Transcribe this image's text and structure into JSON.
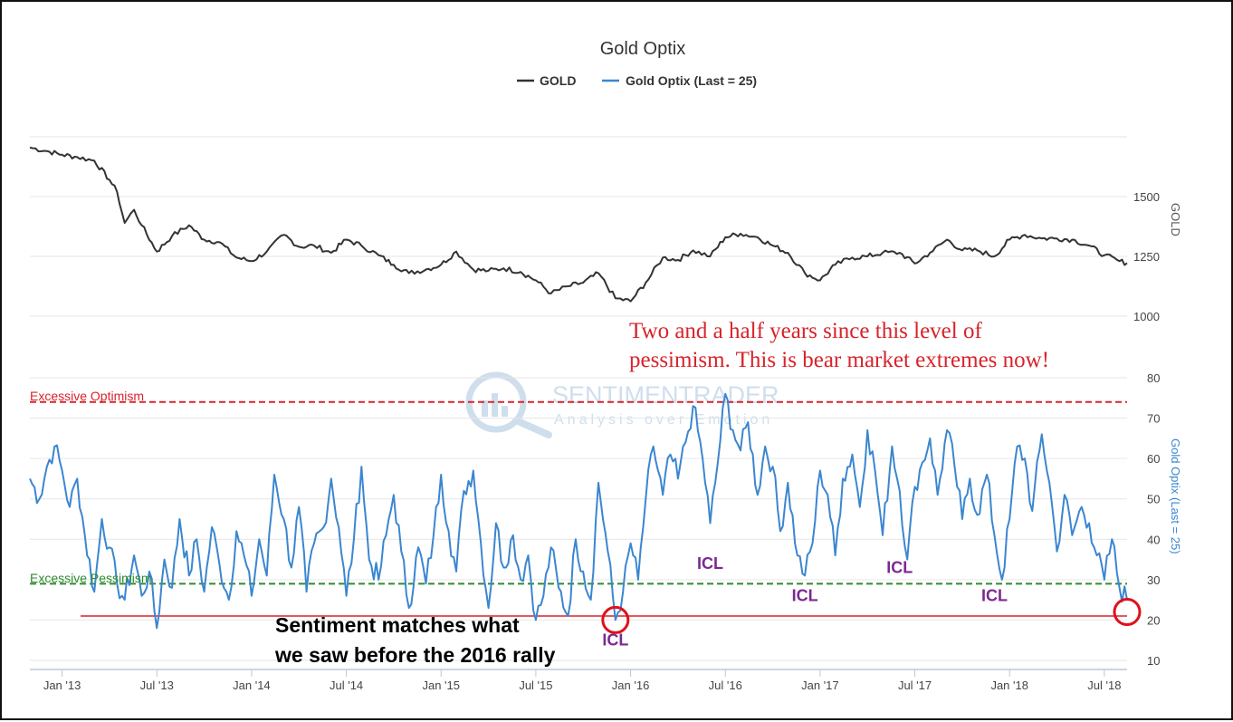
{
  "chart_data": {
    "type": "line",
    "title": "Gold Optix",
    "legend": [
      {
        "name": "GOLD",
        "color": "#333333"
      },
      {
        "name": "Gold Optix (Last = 25)",
        "color": "#3b86d0"
      }
    ],
    "x_range": [
      2012.83,
      2018.62
    ],
    "x_ticks": [
      {
        "label": "Jan '13",
        "x": 2013.0
      },
      {
        "label": "Jul '13",
        "x": 2013.5
      },
      {
        "label": "Jan '14",
        "x": 2014.0
      },
      {
        "label": "Jul '14",
        "x": 2014.5
      },
      {
        "label": "Jan '15",
        "x": 2015.0
      },
      {
        "label": "Jul '15",
        "x": 2015.5
      },
      {
        "label": "Jan '16",
        "x": 2016.0
      },
      {
        "label": "Jul '16",
        "x": 2016.5
      },
      {
        "label": "Jan '17",
        "x": 2017.0
      },
      {
        "label": "Jul '17",
        "x": 2017.5
      },
      {
        "label": "Jan '18",
        "x": 2018.0
      },
      {
        "label": "Jul '18",
        "x": 2018.5
      }
    ],
    "gold": {
      "axis_title": "GOLD",
      "ylim": [
        1000,
        1750
      ],
      "y_ticks": [
        1000,
        1250,
        1500
      ],
      "points": [
        [
          2012.83,
          1705
        ],
        [
          2012.92,
          1690
        ],
        [
          2013.0,
          1675
        ],
        [
          2013.08,
          1665
        ],
        [
          2013.17,
          1650
        ],
        [
          2013.25,
          1570
        ],
        [
          2013.29,
          1520
        ],
        [
          2013.33,
          1390
        ],
        [
          2013.38,
          1445
        ],
        [
          2013.42,
          1380
        ],
        [
          2013.5,
          1270
        ],
        [
          2013.58,
          1335
        ],
        [
          2013.67,
          1380
        ],
        [
          2013.75,
          1320
        ],
        [
          2013.83,
          1310
        ],
        [
          2013.92,
          1245
        ],
        [
          2014.0,
          1230
        ],
        [
          2014.08,
          1270
        ],
        [
          2014.17,
          1340
        ],
        [
          2014.25,
          1290
        ],
        [
          2014.33,
          1295
        ],
        [
          2014.42,
          1265
        ],
        [
          2014.5,
          1320
        ],
        [
          2014.58,
          1295
        ],
        [
          2014.67,
          1255
        ],
        [
          2014.75,
          1215
        ],
        [
          2014.83,
          1180
        ],
        [
          2014.92,
          1195
        ],
        [
          2015.0,
          1215
        ],
        [
          2015.08,
          1270
        ],
        [
          2015.17,
          1195
        ],
        [
          2015.25,
          1190
        ],
        [
          2015.33,
          1200
        ],
        [
          2015.42,
          1185
        ],
        [
          2015.5,
          1150
        ],
        [
          2015.58,
          1095
        ],
        [
          2015.67,
          1125
        ],
        [
          2015.75,
          1140
        ],
        [
          2015.83,
          1180
        ],
        [
          2015.92,
          1075
        ],
        [
          2016.0,
          1062
        ],
        [
          2016.08,
          1140
        ],
        [
          2016.17,
          1245
        ],
        [
          2016.25,
          1235
        ],
        [
          2016.33,
          1275
        ],
        [
          2016.42,
          1250
        ],
        [
          2016.5,
          1330
        ],
        [
          2016.58,
          1345
        ],
        [
          2016.67,
          1330
        ],
        [
          2016.75,
          1295
        ],
        [
          2016.83,
          1265
        ],
        [
          2016.92,
          1180
        ],
        [
          2017.0,
          1150
        ],
        [
          2017.08,
          1215
        ],
        [
          2017.17,
          1245
        ],
        [
          2017.25,
          1250
        ],
        [
          2017.33,
          1265
        ],
        [
          2017.42,
          1265
        ],
        [
          2017.5,
          1220
        ],
        [
          2017.58,
          1265
        ],
        [
          2017.67,
          1320
        ],
        [
          2017.75,
          1275
        ],
        [
          2017.83,
          1275
        ],
        [
          2017.92,
          1250
        ],
        [
          2018.0,
          1320
        ],
        [
          2018.08,
          1340
        ],
        [
          2018.17,
          1325
        ],
        [
          2018.25,
          1325
        ],
        [
          2018.33,
          1320
        ],
        [
          2018.42,
          1295
        ],
        [
          2018.5,
          1255
        ],
        [
          2018.58,
          1230
        ],
        [
          2018.62,
          1222
        ]
      ]
    },
    "optix": {
      "axis_title": "Gold Optix (Last = 25)",
      "ylim": [
        10,
        80
      ],
      "y_ticks": [
        10,
        20,
        30,
        40,
        50,
        60,
        70,
        80
      ],
      "last": 25,
      "points": [
        [
          2012.83,
          55
        ],
        [
          2012.88,
          50
        ],
        [
          2012.92,
          58
        ],
        [
          2012.96,
          63
        ],
        [
          2013.0,
          57
        ],
        [
          2013.04,
          48
        ],
        [
          2013.08,
          55
        ],
        [
          2013.12,
          41
        ],
        [
          2013.17,
          27
        ],
        [
          2013.21,
          45
        ],
        [
          2013.25,
          38
        ],
        [
          2013.29,
          29
        ],
        [
          2013.33,
          25
        ],
        [
          2013.38,
          36
        ],
        [
          2013.42,
          26
        ],
        [
          2013.46,
          32
        ],
        [
          2013.5,
          18
        ],
        [
          2013.54,
          35
        ],
        [
          2013.58,
          28
        ],
        [
          2013.62,
          45
        ],
        [
          2013.67,
          31
        ],
        [
          2013.71,
          40
        ],
        [
          2013.75,
          27
        ],
        [
          2013.79,
          43
        ],
        [
          2013.83,
          34
        ],
        [
          2013.88,
          25
        ],
        [
          2013.92,
          42
        ],
        [
          2013.96,
          36
        ],
        [
          2014.0,
          26
        ],
        [
          2014.04,
          40
        ],
        [
          2014.08,
          31
        ],
        [
          2014.12,
          56
        ],
        [
          2014.17,
          45
        ],
        [
          2014.21,
          33
        ],
        [
          2014.25,
          48
        ],
        [
          2014.29,
          27
        ],
        [
          2014.33,
          39
        ],
        [
          2014.38,
          43
        ],
        [
          2014.42,
          55
        ],
        [
          2014.46,
          43
        ],
        [
          2014.5,
          26
        ],
        [
          2014.54,
          40
        ],
        [
          2014.58,
          58
        ],
        [
          2014.62,
          35
        ],
        [
          2014.67,
          30
        ],
        [
          2014.71,
          41
        ],
        [
          2014.75,
          51
        ],
        [
          2014.79,
          37
        ],
        [
          2014.83,
          23
        ],
        [
          2014.88,
          38
        ],
        [
          2014.92,
          29
        ],
        [
          2014.96,
          41
        ],
        [
          2015.0,
          56
        ],
        [
          2015.04,
          42
        ],
        [
          2015.08,
          32
        ],
        [
          2015.12,
          52
        ],
        [
          2015.17,
          57
        ],
        [
          2015.21,
          39
        ],
        [
          2015.25,
          23
        ],
        [
          2015.29,
          44
        ],
        [
          2015.33,
          33
        ],
        [
          2015.38,
          41
        ],
        [
          2015.42,
          30
        ],
        [
          2015.46,
          36
        ],
        [
          2015.5,
          20
        ],
        [
          2015.54,
          26
        ],
        [
          2015.58,
          38
        ],
        [
          2015.62,
          28
        ],
        [
          2015.67,
          21
        ],
        [
          2015.71,
          40
        ],
        [
          2015.75,
          32
        ],
        [
          2015.79,
          25
        ],
        [
          2015.83,
          54
        ],
        [
          2015.88,
          37
        ],
        [
          2015.92,
          20
        ],
        [
          2015.96,
          27
        ],
        [
          2016.0,
          39
        ],
        [
          2016.04,
          30
        ],
        [
          2016.08,
          50
        ],
        [
          2016.12,
          63
        ],
        [
          2016.17,
          51
        ],
        [
          2016.21,
          61
        ],
        [
          2016.25,
          55
        ],
        [
          2016.29,
          64
        ],
        [
          2016.33,
          73
        ],
        [
          2016.38,
          60
        ],
        [
          2016.42,
          44
        ],
        [
          2016.46,
          59
        ],
        [
          2016.5,
          76
        ],
        [
          2016.54,
          67
        ],
        [
          2016.58,
          62
        ],
        [
          2016.62,
          69
        ],
        [
          2016.67,
          51
        ],
        [
          2016.71,
          63
        ],
        [
          2016.75,
          58
        ],
        [
          2016.79,
          42
        ],
        [
          2016.83,
          54
        ],
        [
          2016.88,
          36
        ],
        [
          2016.92,
          31
        ],
        [
          2016.96,
          39
        ],
        [
          2017.0,
          57
        ],
        [
          2017.04,
          51
        ],
        [
          2017.08,
          36
        ],
        [
          2017.12,
          55
        ],
        [
          2017.17,
          61
        ],
        [
          2017.21,
          48
        ],
        [
          2017.25,
          67
        ],
        [
          2017.29,
          57
        ],
        [
          2017.33,
          41
        ],
        [
          2017.38,
          63
        ],
        [
          2017.42,
          52
        ],
        [
          2017.46,
          35
        ],
        [
          2017.5,
          53
        ],
        [
          2017.54,
          59
        ],
        [
          2017.58,
          65
        ],
        [
          2017.62,
          51
        ],
        [
          2017.67,
          67
        ],
        [
          2017.71,
          58
        ],
        [
          2017.75,
          45
        ],
        [
          2017.79,
          55
        ],
        [
          2017.83,
          46
        ],
        [
          2017.88,
          56
        ],
        [
          2017.92,
          41
        ],
        [
          2017.96,
          30
        ],
        [
          2018.0,
          45
        ],
        [
          2018.04,
          63
        ],
        [
          2018.08,
          60
        ],
        [
          2018.12,
          47
        ],
        [
          2018.17,
          66
        ],
        [
          2018.21,
          54
        ],
        [
          2018.25,
          37
        ],
        [
          2018.29,
          51
        ],
        [
          2018.33,
          41
        ],
        [
          2018.38,
          48
        ],
        [
          2018.42,
          44
        ],
        [
          2018.46,
          36
        ],
        [
          2018.5,
          30
        ],
        [
          2018.54,
          40
        ],
        [
          2018.58,
          28
        ],
        [
          2018.62,
          25
        ]
      ]
    },
    "reference_lines": [
      {
        "name": "Excessive Optimism",
        "value": 74,
        "color": "#d8232a",
        "style": "dashed"
      },
      {
        "name": "Excessive Pessimism",
        "value": 29,
        "color": "#2e8b2e",
        "style": "dashed"
      },
      {
        "name": "sentiment-low-line",
        "value": 21,
        "color": "#d8232a",
        "style": "solid"
      }
    ],
    "annotations": {
      "headline_line1": "Two and a half years since this level of",
      "headline_line2": "pessimism.  This is bear market extremes now!",
      "note_line1": "Sentiment matches what",
      "note_line2": "we saw before the 2016 rally",
      "icl_labels": [
        {
          "text": "ICL",
          "x": 2015.92,
          "y": 15
        },
        {
          "text": "ICL",
          "x": 2016.42,
          "y": 34
        },
        {
          "text": "ICL",
          "x": 2016.92,
          "y": 26
        },
        {
          "text": "ICL",
          "x": 2017.42,
          "y": 33
        },
        {
          "text": "ICL",
          "x": 2017.92,
          "y": 26
        }
      ],
      "circles": [
        {
          "x": 2015.92,
          "y": 20
        },
        {
          "x": 2018.62,
          "y": 22
        }
      ]
    },
    "watermark": {
      "brand": "SENTIMENTRADER",
      "tagline": "Analysis over Emotion"
    }
  }
}
